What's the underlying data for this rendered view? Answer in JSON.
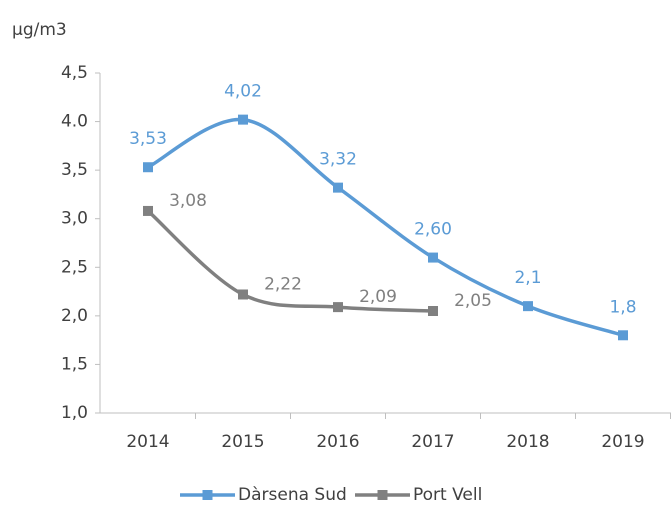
{
  "chart_data": {
    "type": "line",
    "ylabel": "μg/m3",
    "categories": [
      "2014",
      "2015",
      "2016",
      "2017",
      "2018",
      "2019"
    ],
    "series": [
      {
        "name": "Dàrsena Sud",
        "color": "#5b9bd5",
        "values": [
          3.53,
          4.02,
          3.32,
          2.6,
          2.1,
          1.8
        ],
        "value_labels": [
          "3,53",
          "4,02",
          "3,32",
          "2,60",
          "2,1",
          "1,8"
        ]
      },
      {
        "name": "Port Vell",
        "color": "#808080",
        "values": [
          3.08,
          2.22,
          2.09,
          2.05,
          null,
          null
        ],
        "value_labels": [
          "3,08",
          "2,22",
          "2,09",
          "2,05",
          null,
          null
        ]
      }
    ],
    "ylim": [
      1.0,
      4.5
    ],
    "yticks": [
      {
        "value": 1.0,
        "label": "1,0"
      },
      {
        "value": 1.5,
        "label": "1,5"
      },
      {
        "value": 2.0,
        "label": "2,0"
      },
      {
        "value": 2.5,
        "label": "2,5"
      },
      {
        "value": 3.0,
        "label": "3,0"
      },
      {
        "value": 3.5,
        "label": "3,5"
      },
      {
        "value": 4.0,
        "label": "4.0"
      },
      {
        "value": 4.5,
        "label": "4,5"
      }
    ],
    "grid": false,
    "legend": "bottom"
  }
}
